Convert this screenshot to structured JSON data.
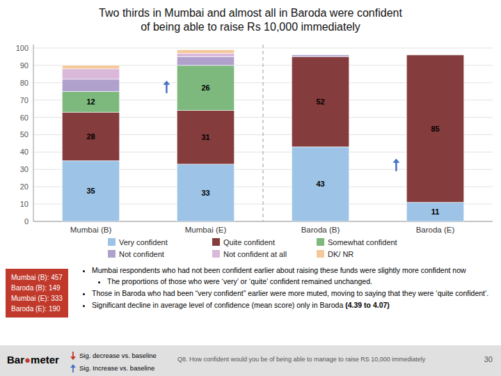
{
  "chart_data": {
    "type": "bar",
    "stacked": true,
    "title": "Two thirds in Mumbai and almost all in Baroda were confident",
    "subtitle": "of being able to raise Rs 10,000 immediately",
    "categories": [
      "Mumbai (B)",
      "Mumbai (E)",
      "Baroda (B)",
      "Baroda (E)"
    ],
    "series": [
      {
        "name": "Very confident",
        "color": "#9dc3e6",
        "values": [
          35,
          33,
          43,
          11
        ],
        "data_labels": true
      },
      {
        "name": "Quite confident",
        "color": "#843c3c",
        "values": [
          28,
          31,
          52,
          85
        ],
        "data_labels": true
      },
      {
        "name": "Somewhat confident",
        "color": "#7db87d",
        "values": [
          12,
          26,
          0,
          0
        ],
        "data_labels": true
      },
      {
        "name": "Not confident",
        "color": "#b0a0cc",
        "values": [
          7,
          5,
          1,
          0
        ],
        "data_labels": false
      },
      {
        "name": "Not confident at all",
        "color": "#d9b8d9",
        "values": [
          6,
          2,
          0,
          0
        ],
        "data_labels": false
      },
      {
        "name": "DK/ NR",
        "color": "#f4c89a",
        "values": [
          2,
          2,
          0,
          0
        ],
        "data_labels": false
      }
    ],
    "ylim": [
      0,
      102
    ],
    "yticks": [
      0,
      10,
      20,
      30,
      40,
      50,
      60,
      70,
      80,
      90,
      100
    ],
    "grid": true,
    "legend": "bottom",
    "annotations": [
      {
        "type": "separator",
        "between": [
          "Mumbai (E)",
          "Baroda (B)"
        ]
      },
      {
        "type": "arrow",
        "category": "Mumbai (E)",
        "y": 74,
        "direction": "up",
        "color": "#4472c4"
      },
      {
        "type": "arrow",
        "category": "Baroda (E)",
        "y": 29,
        "direction": "up",
        "color": "#4472c4"
      },
      {
        "type": "box",
        "color": "#c0392b",
        "lines": [
          "Mumbai (B): 457",
          "Baroda (B): 149",
          "Mumbai (E): 333",
          "Baroda (E): 190"
        ]
      },
      {
        "type": "bullet",
        "text": "Mumbai respondents who had not been confident earlier about raising these funds were slightly more confident now"
      },
      {
        "type": "sub-bullet",
        "text": "The proportions of those who were ‘very’ or ‘quite’ confident remained unchanged."
      },
      {
        "type": "bullet",
        "text": "Those in Baroda who had been “very confident” earlier were more muted, moving to saying that they were ‘quite confident’."
      },
      {
        "type": "bullet",
        "text": "Significant decline in average level of confidence (mean score) only in Baroda ",
        "bold": "(4.39 to 4.07)"
      },
      {
        "type": "footer",
        "color": "#e0e0e0",
        "text": "Q8. How confident would you be of being able to manage to raise RS 10,000 immediately"
      },
      {
        "type": "footer-key",
        "direction": "down",
        "color": "#c0392b",
        "text": "Sig. decrease vs. baseline"
      },
      {
        "type": "footer-key",
        "direction": "up",
        "color": "#4472c4",
        "text": "Sig. Increase vs. baseline"
      },
      {
        "type": "page-number",
        "text": "30"
      },
      {
        "type": "logo",
        "color": "#c0392b",
        "parts": [
          "Bar",
          "●",
          "meter"
        ]
      }
    ]
  }
}
